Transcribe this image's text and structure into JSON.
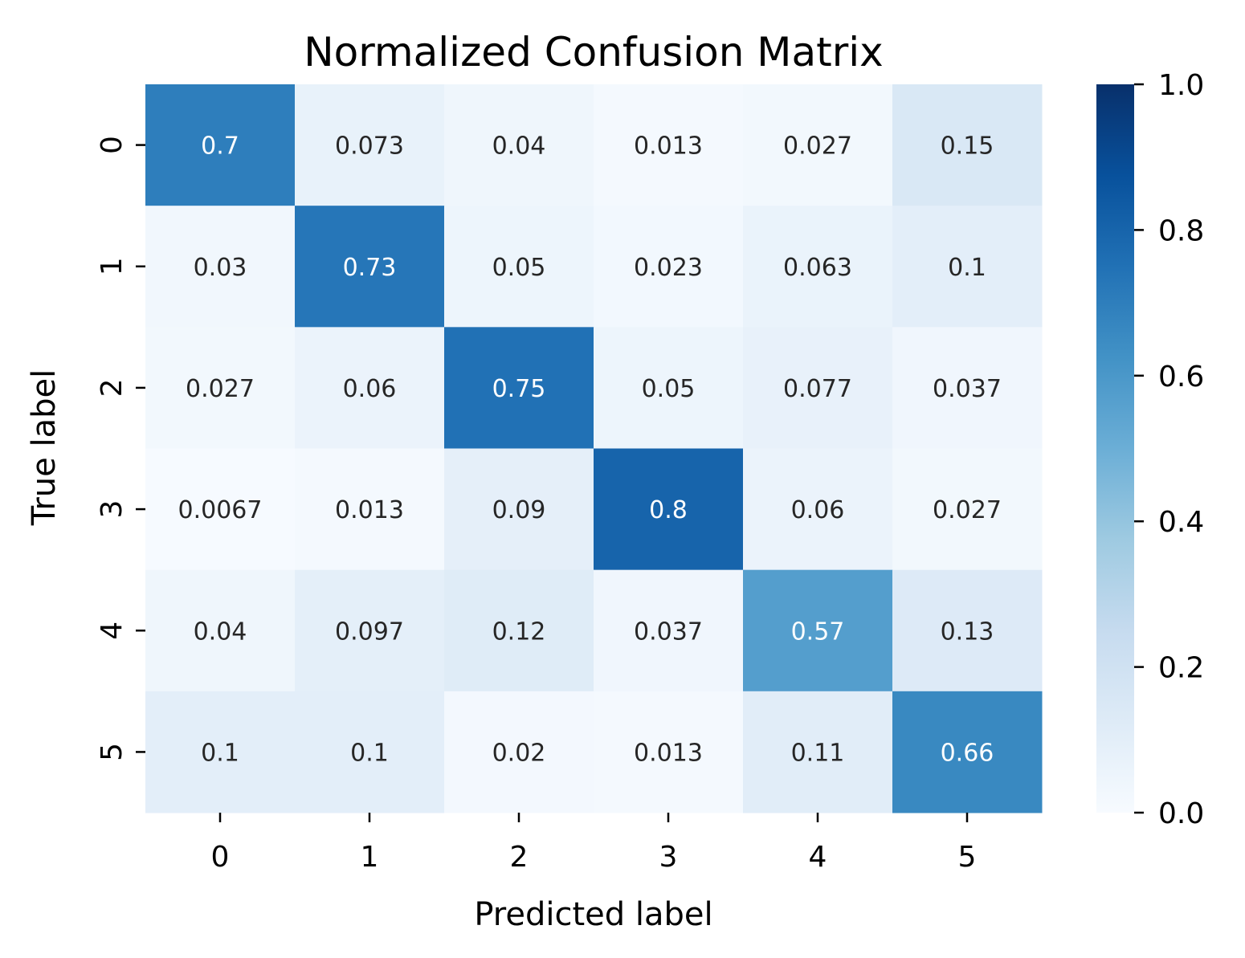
{
  "chart_data": {
    "type": "heatmap",
    "title": "Normalized Confusion Matrix",
    "xlabel": "Predicted label",
    "ylabel": "True label",
    "x_categories": [
      "0",
      "1",
      "2",
      "3",
      "4",
      "5"
    ],
    "y_categories": [
      "0",
      "1",
      "2",
      "3",
      "4",
      "5"
    ],
    "values": [
      [
        0.7,
        0.073,
        0.04,
        0.013,
        0.027,
        0.15
      ],
      [
        0.03,
        0.73,
        0.05,
        0.023,
        0.063,
        0.1
      ],
      [
        0.027,
        0.06,
        0.75,
        0.05,
        0.077,
        0.037
      ],
      [
        0.0067,
        0.013,
        0.09,
        0.8,
        0.06,
        0.027
      ],
      [
        0.04,
        0.097,
        0.12,
        0.037,
        0.57,
        0.13
      ],
      [
        0.1,
        0.1,
        0.02,
        0.013,
        0.11,
        0.66
      ]
    ],
    "cell_labels": [
      [
        "0.7",
        "0.073",
        "0.04",
        "0.013",
        "0.027",
        "0.15"
      ],
      [
        "0.03",
        "0.73",
        "0.05",
        "0.023",
        "0.063",
        "0.1"
      ],
      [
        "0.027",
        "0.06",
        "0.75",
        "0.05",
        "0.077",
        "0.037"
      ],
      [
        "0.0067",
        "0.013",
        "0.09",
        "0.8",
        "0.06",
        "0.027"
      ],
      [
        "0.04",
        "0.097",
        "0.12",
        "0.037",
        "0.57",
        "0.13"
      ],
      [
        "0.1",
        "0.1",
        "0.02",
        "0.013",
        "0.11",
        "0.66"
      ]
    ],
    "colormap": "Blues",
    "vmin": 0.0,
    "vmax": 1.0,
    "colorbar": {
      "ticks": [
        0.0,
        0.2,
        0.4,
        0.6,
        0.8,
        1.0
      ],
      "tick_labels": [
        "0.0",
        "0.2",
        "0.4",
        "0.6",
        "0.8",
        "1.0"
      ]
    },
    "colors": {
      "text_light": "#ffffff",
      "text_dark": "#262626"
    }
  }
}
